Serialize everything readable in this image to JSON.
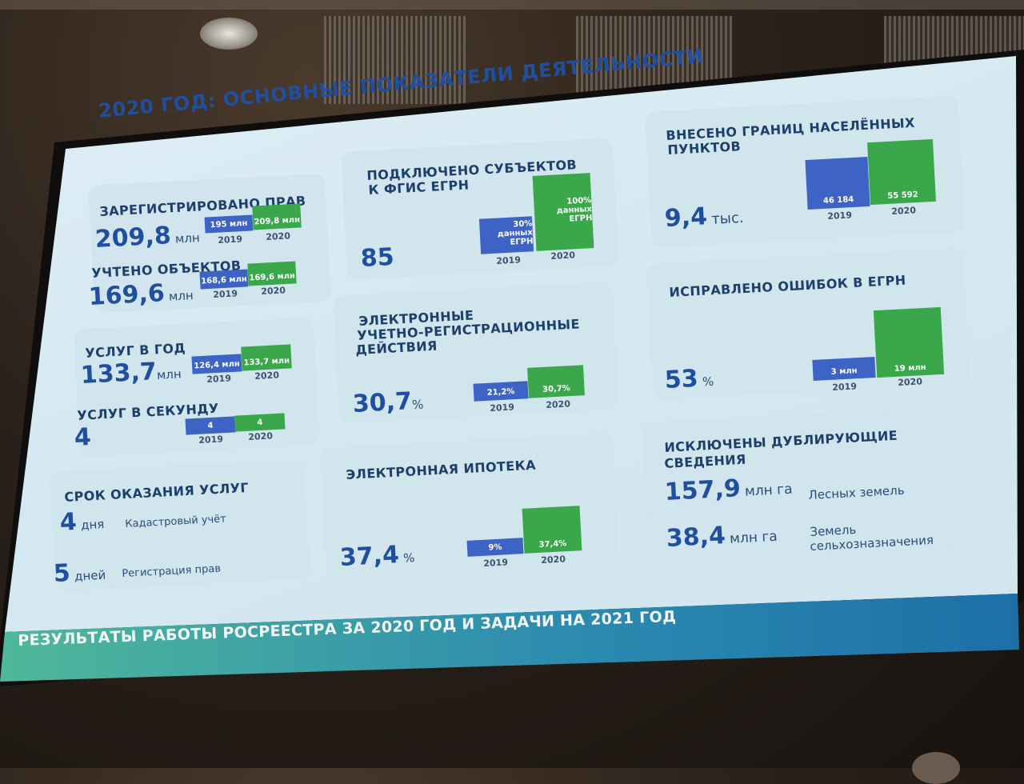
{
  "slide": {
    "title": "2020 ГОД: ОСНОВНЫЕ ПОКАЗАТЕЛИ ДЕЯТЕЛЬНОСТИ",
    "footer": "РЕЗУЛЬТАТЫ РАБОТЫ РОСРЕЕСТРА ЗА 2020 ГОД И ЗАДАЧИ НА 2021 ГОД",
    "colors": {
      "bar_2019": "#3d63c4",
      "bar_2020": "#3aa84a",
      "accent_text": "#1f4f9e"
    },
    "rights": {
      "label": "ЗАРЕГИСТРИРОВАНО ПРАВ",
      "value": "209,8",
      "unit": "млн",
      "bar_2019": "195 млн",
      "bar_2020": "209,8 млн",
      "year_2019": "2019",
      "year_2020": "2020"
    },
    "objects": {
      "label": "УЧТЕНО ОБЪЕКТОВ",
      "value": "169,6",
      "unit": "млн",
      "bar_2019": "168,6 млн",
      "bar_2020": "169,6 млн",
      "year_2019": "2019",
      "year_2020": "2020"
    },
    "services_year": {
      "label": "УСЛУГ В ГОД",
      "value": "133,7",
      "unit": "млн",
      "bar_2019": "126,4 млн",
      "bar_2020": "133,7 млн",
      "year_2019": "2019",
      "year_2020": "2020"
    },
    "services_second": {
      "label": "УСЛУГ В СЕКУНДУ",
      "value": "4",
      "bar_2019": "4",
      "bar_2020": "4",
      "year_2019": "2019",
      "year_2020": "2020"
    },
    "terms": {
      "label": "СРОК ОКАЗАНИЯ УСЛУГ",
      "cadastre_value": "4",
      "cadastre_unit": "дня",
      "cadastre_label": "Кадастровый учёт",
      "registration_value": "5",
      "registration_unit": "дней",
      "registration_label": "Регистрация прав"
    },
    "subjects": {
      "label_line1": "ПОДКЛЮЧЕНО СУБЪЕКТОВ",
      "label_line2": "К ФГИС ЕГРН",
      "value": "85",
      "bar_2019_l1": "30%",
      "bar_2019_l2": "данных",
      "bar_2019_l3": "ЕГРН",
      "bar_2020_l1": "100%",
      "bar_2020_l2": "данных",
      "bar_2020_l3": "ЕГРН",
      "year_2019": "2019",
      "year_2020": "2020"
    },
    "electronic": {
      "label_line1": "ЭЛЕКТРОННЫЕ",
      "label_line2": "УЧЕТНО-РЕГИСТРАЦИОННЫЕ",
      "label_line3": "ДЕЙСТВИЯ",
      "value": "30,7",
      "unit": "%",
      "bar_2019": "21,2%",
      "bar_2020": "30,7%",
      "year_2019": "2019",
      "year_2020": "2020"
    },
    "mortgage": {
      "label": "ЭЛЕКТРОННАЯ ИПОТЕКА",
      "value": "37,4",
      "unit": "%",
      "bar_2019": "9%",
      "bar_2020": "37,4%",
      "year_2019": "2019",
      "year_2020": "2020"
    },
    "borders": {
      "label_line1": "ВНЕСЕНО ГРАНИЦ НАСЕЛЁННЫХ",
      "label_line2": "ПУНКТОВ",
      "value": "9,4",
      "unit": "тыс.",
      "bar_2019": "46 184",
      "bar_2020": "55 592",
      "year_2019": "2019",
      "year_2020": "2020"
    },
    "errors": {
      "label": "ИСПРАВЛЕНО ОШИБОК В ЕГРН",
      "value": "53",
      "unit": "%",
      "bar_2019": "3 млн",
      "bar_2020": "19 млн",
      "year_2019": "2019",
      "year_2020": "2020"
    },
    "duplicates": {
      "label_line1": "ИСКЛЮЧЕНЫ ДУБЛИРУЮЩИЕ",
      "label_line2": "СВЕДЕНИЯ",
      "forest_value": "157,9",
      "forest_unit": "млн га",
      "forest_label": "Лесных земель",
      "agri_value": "38,4",
      "agri_unit": "млн га",
      "agri_label_line1": "Земель",
      "agri_label_line2": "сельхозназначения"
    }
  }
}
